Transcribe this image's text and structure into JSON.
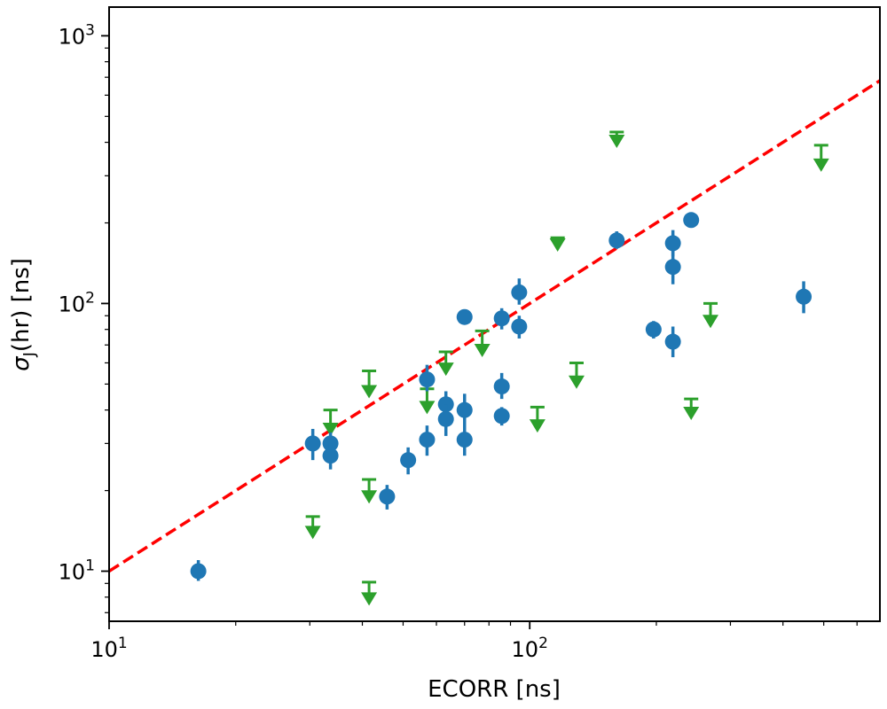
{
  "chart_data": {
    "type": "scatter",
    "xscale": "log",
    "yscale": "log",
    "xlim": [
      10,
      680
    ],
    "ylim": [
      6.5,
      1280
    ],
    "xlabel": "ECORR [ns]",
    "ylabel_symbol": "σ",
    "ylabel_subscript": "J",
    "ylabel_rest": "(hr) [ns]",
    "x_major_ticks": [
      {
        "value": 10,
        "base": "10",
        "exp": "1"
      },
      {
        "value": 100,
        "base": "10",
        "exp": "2"
      }
    ],
    "y_major_ticks": [
      {
        "value": 10,
        "base": "10",
        "exp": "1"
      },
      {
        "value": 100,
        "base": "10",
        "exp": "2"
      },
      {
        "value": 1000,
        "base": "10",
        "exp": "3"
      }
    ],
    "grid": false,
    "colors": {
      "measured": "#1f77b4",
      "upper_limit": "#2ca02c",
      "reference_line": "#ff0000"
    },
    "reference_line": {
      "label": "",
      "style": "dashed",
      "points": [
        [
          10,
          10
        ],
        [
          680,
          680
        ]
      ]
    },
    "series": [
      {
        "name": "measured",
        "marker": "circle",
        "points": [
          {
            "x": 16.3,
            "y": 10,
            "err": [
              9.2,
              11
            ]
          },
          {
            "x": 30.5,
            "y": 30,
            "err": [
              26,
              34
            ]
          },
          {
            "x": 33.6,
            "y": 30,
            "err": [
              27,
              33
            ]
          },
          {
            "x": 33.6,
            "y": 27,
            "err": [
              24,
              30
            ]
          },
          {
            "x": 45.8,
            "y": 19,
            "err": [
              17,
              21
            ]
          },
          {
            "x": 51.4,
            "y": 26,
            "err": [
              23,
              29
            ]
          },
          {
            "x": 57.0,
            "y": 52,
            "err": [
              47,
              59
            ]
          },
          {
            "x": 57.0,
            "y": 31,
            "err": [
              27,
              35
            ]
          },
          {
            "x": 63.2,
            "y": 42,
            "err": [
              37,
              47
            ]
          },
          {
            "x": 63.2,
            "y": 37,
            "err": [
              32,
              42
            ]
          },
          {
            "x": 70.0,
            "y": 89,
            "err": [
              84,
              94
            ]
          },
          {
            "x": 70.0,
            "y": 40,
            "err": [
              35,
              46
            ]
          },
          {
            "x": 70.0,
            "y": 31,
            "err": [
              27,
              37
            ]
          },
          {
            "x": 85.8,
            "y": 88,
            "err": [
              80,
              96
            ]
          },
          {
            "x": 85.8,
            "y": 49,
            "err": [
              44,
              55
            ]
          },
          {
            "x": 85.8,
            "y": 38,
            "err": [
              35,
              41
            ]
          },
          {
            "x": 94.4,
            "y": 110,
            "err": [
              99,
              124
            ]
          },
          {
            "x": 94.4,
            "y": 82,
            "err": [
              74,
              90
            ]
          },
          {
            "x": 161,
            "y": 172,
            "err": [
              160,
              186
            ]
          },
          {
            "x": 197,
            "y": 80,
            "err": [
              74,
              86
            ]
          },
          {
            "x": 219,
            "y": 168,
            "err": [
              150,
              188
            ]
          },
          {
            "x": 219,
            "y": 137,
            "err": [
              118,
              158
            ]
          },
          {
            "x": 219,
            "y": 72,
            "err": [
              63,
              82
            ]
          },
          {
            "x": 242,
            "y": 205,
            "err": [
              195,
              215
            ]
          },
          {
            "x": 448,
            "y": 106,
            "err": [
              92,
              121
            ]
          }
        ]
      },
      {
        "name": "upper_limit",
        "marker": "down-triangle",
        "points": [
          {
            "x": 30.5,
            "y": 14,
            "cap": 16
          },
          {
            "x": 33.6,
            "y": 34,
            "cap": 40
          },
          {
            "x": 41.5,
            "y": 19,
            "cap": 22
          },
          {
            "x": 41.5,
            "y": 7.9,
            "cap": 9.1
          },
          {
            "x": 41.5,
            "y": 47,
            "cap": 56
          },
          {
            "x": 57.0,
            "y": 41,
            "cap": 48
          },
          {
            "x": 63.2,
            "y": 57,
            "cap": 66
          },
          {
            "x": 77.1,
            "y": 67,
            "cap": 79
          },
          {
            "x": 104.3,
            "y": 35,
            "cap": 41
          },
          {
            "x": 116.5,
            "y": 166,
            "cap": 176
          },
          {
            "x": 129.2,
            "y": 51,
            "cap": 60
          },
          {
            "x": 161,
            "y": 405,
            "cap": 437
          },
          {
            "x": 242,
            "y": 39,
            "cap": 44
          },
          {
            "x": 269,
            "y": 86,
            "cap": 100
          },
          {
            "x": 493,
            "y": 330,
            "cap": 390
          }
        ]
      }
    ]
  }
}
